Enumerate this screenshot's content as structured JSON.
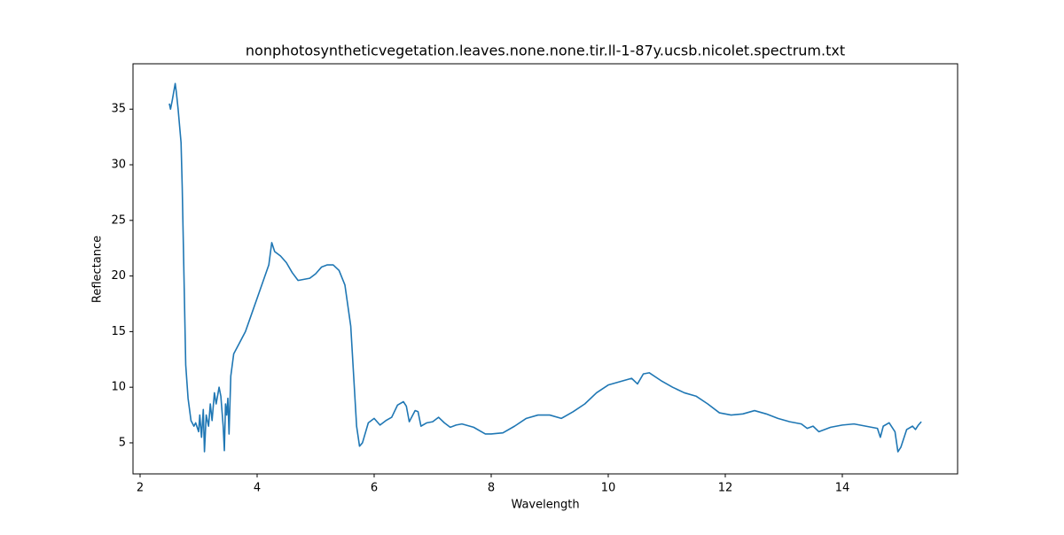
{
  "chart_data": {
    "type": "line",
    "title": "nonphotosyntheticvegetation.leaves.none.none.tir.ll-1-87y.ucsb.nicolet.spectrum.txt",
    "x_label": "Wavelength",
    "y_label": "Reflectance",
    "color": "#1f77b4",
    "x": [
      2.5,
      2.52,
      2.55,
      2.6,
      2.62,
      2.65,
      2.7,
      2.72,
      2.75,
      2.78,
      2.82,
      2.87,
      2.92,
      2.95,
      3.0,
      3.02,
      3.05,
      3.08,
      3.1,
      3.13,
      3.17,
      3.2,
      3.23,
      3.27,
      3.3,
      3.35,
      3.38,
      3.42,
      3.44,
      3.46,
      3.48,
      3.5,
      3.52,
      3.55,
      3.6,
      3.7,
      3.8,
      3.9,
      4.0,
      4.1,
      4.2,
      4.25,
      4.3,
      4.4,
      4.5,
      4.6,
      4.7,
      4.8,
      4.9,
      5.0,
      5.1,
      5.2,
      5.3,
      5.4,
      5.5,
      5.6,
      5.65,
      5.7,
      5.75,
      5.8,
      5.9,
      6.0,
      6.1,
      6.2,
      6.3,
      6.4,
      6.5,
      6.55,
      6.6,
      6.7,
      6.75,
      6.8,
      6.9,
      7.0,
      7.1,
      7.2,
      7.3,
      7.4,
      7.5,
      7.7,
      7.9,
      8.0,
      8.2,
      8.4,
      8.6,
      8.8,
      9.0,
      9.2,
      9.4,
      9.6,
      9.8,
      10.0,
      10.2,
      10.4,
      10.5,
      10.6,
      10.7,
      10.9,
      11.1,
      11.3,
      11.5,
      11.7,
      11.9,
      12.1,
      12.3,
      12.5,
      12.7,
      12.9,
      13.1,
      13.3,
      13.4,
      13.5,
      13.6,
      13.8,
      14.0,
      14.2,
      14.4,
      14.6,
      14.65,
      14.7,
      14.8,
      14.9,
      14.95,
      15.0,
      15.1,
      15.2,
      15.25,
      15.3,
      15.35
    ],
    "values": [
      35.5,
      35.0,
      35.8,
      37.3,
      36.5,
      35.0,
      32,
      28,
      20,
      12,
      9,
      7,
      6.5,
      6.8,
      6.0,
      7.5,
      5.5,
      8.0,
      4.2,
      7.5,
      6.5,
      8.5,
      7.0,
      9.5,
      8.5,
      10.0,
      9.2,
      6.5,
      4.3,
      8.5,
      7.5,
      9.0,
      5.8,
      11,
      13,
      14,
      15,
      16.5,
      18,
      19.5,
      21,
      23.0,
      22.2,
      21.8,
      21.2,
      20.3,
      19.6,
      19.7,
      19.8,
      20.2,
      20.8,
      21.0,
      21.0,
      20.5,
      19.2,
      15.5,
      11,
      6.5,
      4.7,
      5.0,
      6.8,
      7.2,
      6.6,
      7.0,
      7.3,
      8.4,
      8.7,
      8.3,
      6.9,
      7.9,
      7.8,
      6.5,
      6.8,
      6.9,
      7.3,
      6.8,
      6.4,
      6.6,
      6.7,
      6.4,
      5.8,
      5.8,
      5.9,
      6.5,
      7.2,
      7.5,
      7.5,
      7.2,
      7.8,
      8.5,
      9.5,
      10.2,
      10.5,
      10.8,
      10.3,
      11.2,
      11.3,
      10.6,
      10.0,
      9.5,
      9.2,
      8.5,
      7.7,
      7.5,
      7.6,
      7.9,
      7.6,
      7.2,
      6.9,
      6.7,
      6.3,
      6.5,
      6.0,
      6.4,
      6.6,
      6.7,
      6.5,
      6.3,
      5.5,
      6.5,
      6.8,
      6.0,
      4.2,
      4.6,
      6.2,
      6.5,
      6.2,
      6.6,
      6.9
    ],
    "xlim": [
      1.879,
      15.97
    ],
    "ylim": [
      2.21,
      39.08
    ],
    "xticks": [
      2,
      4,
      6,
      8,
      10,
      12,
      14
    ],
    "yticks": [
      5,
      10,
      15,
      20,
      25,
      30,
      35
    ]
  }
}
